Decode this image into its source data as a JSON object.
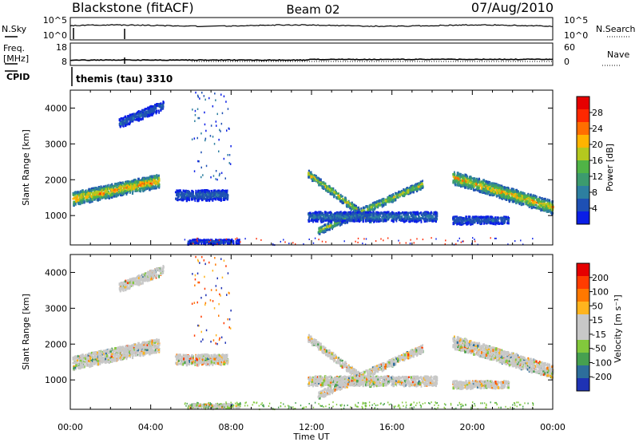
{
  "header": {
    "station": "Blackstone (fitACF)",
    "beam": "Beam 02",
    "date": "07/Aug/2010"
  },
  "top_panels": {
    "nsky_label": "N.Sky",
    "nsearch_label": "N.Search",
    "freq_label_line1": "Freq.",
    "freq_label_line2": "[MHz]",
    "nave_label": "Nave",
    "cpid_label": "CPID",
    "cpid_value": "themis (tau) 3310",
    "noise_left_ticks": [
      "10^5",
      "10^0"
    ],
    "noise_right_ticks": [
      "10^5",
      "10^0"
    ],
    "freq_left_ticks": [
      "18",
      "8"
    ],
    "freq_right_ticks": [
      "60",
      "0"
    ]
  },
  "colors": {
    "power_scale": [
      "#0a1ee6",
      "#1e50b4",
      "#2d7fa0",
      "#3c9b6e",
      "#50b446",
      "#b4c81e",
      "#ffb400",
      "#ff6e00",
      "#ff2800",
      "#e60000"
    ],
    "velocity_scale": [
      "#1e32b4",
      "#2d6e9b",
      "#46a050",
      "#82c83c",
      "#c8c8c8",
      "#c8c8c8",
      "#ffb41e",
      "#ff7800",
      "#ff3c00",
      "#e60000"
    ]
  },
  "chart_data": [
    {
      "type": "heatmap",
      "title": "Power",
      "xlabel": "Time UT",
      "ylabel": "Slant Range [km]",
      "xlim_hours": [
        0,
        24
      ],
      "ylim_km": [
        180,
        4500
      ],
      "x_tick_labels": [
        "00:00",
        "04:00",
        "08:00",
        "12:00",
        "16:00",
        "20:00",
        "00:00"
      ],
      "y_tick_labels": [
        "1000",
        "2000",
        "3000",
        "4000"
      ],
      "colorbar": {
        "label": "Power [dB]",
        "range": [
          0,
          32
        ],
        "tick_labels": [
          "4",
          "8",
          "12",
          "16",
          "20",
          "24",
          "28"
        ]
      },
      "scatter_bands": [
        {
          "name": "morning-arc",
          "t0": 0.1,
          "t1": 4.4,
          "r0": 1500,
          "r1": 2000,
          "width": 360,
          "peak_db": 28
        },
        {
          "name": "upper-patch",
          "t0": 2.4,
          "t1": 4.6,
          "r0": 3600,
          "r1": 4100,
          "width": 250,
          "peak_db": 8
        },
        {
          "name": "late-morning",
          "t0": 5.2,
          "t1": 7.8,
          "r0": 1600,
          "r1": 1600,
          "width": 280,
          "peak_db": 8
        },
        {
          "name": "ground-near",
          "t0": 5.8,
          "t1": 8.4,
          "r0": 300,
          "r1": 300,
          "width": 120,
          "peak_db": 6
        },
        {
          "name": "noon-down",
          "t0": 11.8,
          "t1": 14.9,
          "r0": 2200,
          "r1": 900,
          "width": 200,
          "peak_db": 24
        },
        {
          "name": "noon-up",
          "t0": 12.3,
          "t1": 17.5,
          "r0": 600,
          "r1": 1900,
          "width": 200,
          "peak_db": 22
        },
        {
          "name": "noon-flat",
          "t0": 11.8,
          "t1": 18.2,
          "r0": 1000,
          "r1": 1000,
          "width": 260,
          "peak_db": 10
        },
        {
          "name": "evening",
          "t0": 19.0,
          "t1": 24.0,
          "r0": 2100,
          "r1": 1250,
          "width": 360,
          "peak_db": 26
        },
        {
          "name": "evening-low",
          "t0": 19.0,
          "t1": 21.8,
          "r0": 900,
          "r1": 900,
          "width": 200,
          "peak_db": 8
        }
      ]
    },
    {
      "type": "heatmap",
      "title": "Velocity",
      "xlabel": "Time UT",
      "ylabel": "Slant Range [km]",
      "xlim_hours": [
        0,
        24
      ],
      "ylim_km": [
        180,
        4500
      ],
      "x_tick_labels": [
        "00:00",
        "04:00",
        "08:00",
        "12:00",
        "16:00",
        "20:00",
        "00:00"
      ],
      "y_tick_labels": [
        "1000",
        "2000",
        "3000",
        "4000"
      ],
      "colorbar": {
        "label": "Velocity [m s⁻¹]",
        "range": [
          -250,
          250
        ],
        "tick_labels": [
          "200",
          "100",
          "50",
          "15",
          "-15",
          "-50",
          "-100",
          "-200"
        ]
      }
    },
    {
      "type": "line",
      "title": "N.Sky / N.Search",
      "ylim_log": [
        0,
        5
      ],
      "typical_level": 3.2
    },
    {
      "type": "line",
      "title": "Freq. / Nave",
      "ylim_mhz": [
        8,
        18
      ],
      "typical_mhz": 10.4
    }
  ]
}
